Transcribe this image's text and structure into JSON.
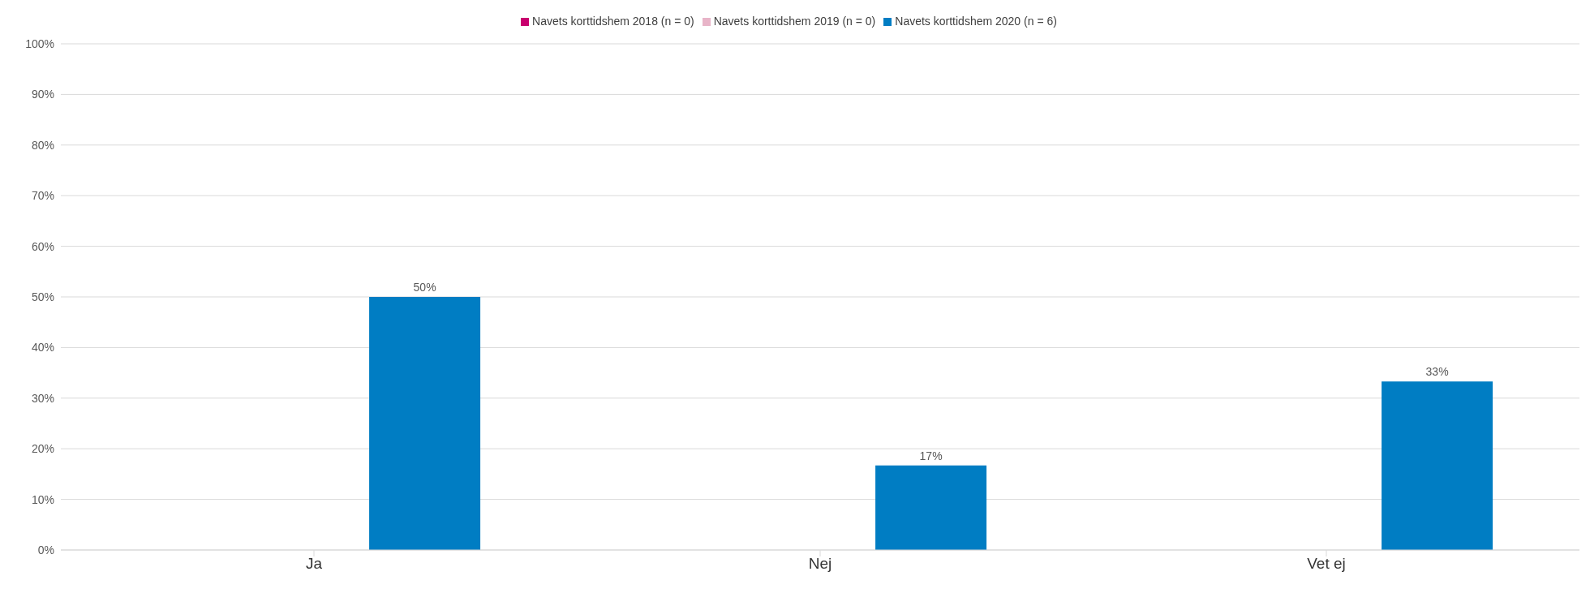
{
  "chart_data": {
    "type": "bar",
    "categories": [
      "Ja",
      "Nej",
      "Vet ej"
    ],
    "series": [
      {
        "name": "Navets korttidshem 2018 (n = 0)",
        "color": "#c8006e",
        "values": [
          null,
          null,
          null
        ]
      },
      {
        "name": "Navets korttidshem 2019 (n = 0)",
        "color": "#e8b4c8",
        "values": [
          null,
          null,
          null
        ]
      },
      {
        "name": "Navets korttidshem 2020 (n = 6)",
        "color": "#007dc3",
        "values": [
          50,
          16.7,
          33.3
        ],
        "value_labels": [
          "50%",
          "17%",
          "33%"
        ]
      }
    ],
    "ylim": [
      0,
      100
    ],
    "yticks": [
      {
        "value": 0,
        "label": "0%"
      },
      {
        "value": 10,
        "label": "10%"
      },
      {
        "value": 20,
        "label": "20%"
      },
      {
        "value": 30,
        "label": "30%"
      },
      {
        "value": 40,
        "label": "40%"
      },
      {
        "value": 50,
        "label": "50%"
      },
      {
        "value": 60,
        "label": "60%"
      },
      {
        "value": 70,
        "label": "70%"
      },
      {
        "value": 80,
        "label": "80%"
      },
      {
        "value": 90,
        "label": "90%"
      },
      {
        "value": 100,
        "label": "100%"
      }
    ],
    "grid": "y",
    "legend": "top"
  }
}
